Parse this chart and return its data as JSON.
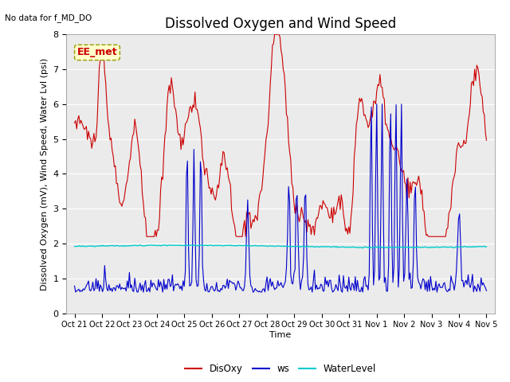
{
  "title": "Dissolved Oxygen and Wind Speed",
  "ylabel": "Dissolved Oxygen (mV), Wind Speed, Water Lvl (psi)",
  "xlabel": "Time",
  "no_data_text": "No data for f_MD_DO",
  "annotation_text": "EE_met",
  "ylim": [
    0.0,
    8.0
  ],
  "yticks": [
    0.0,
    1.0,
    2.0,
    3.0,
    4.0,
    5.0,
    6.0,
    7.0,
    8.0
  ],
  "background_color": "#ebebeb",
  "disoxy_color": "#cc0000",
  "ws_color": "#0000cc",
  "waterlevel_color": "#00cccc",
  "legend_labels": [
    "DisOxy",
    "ws",
    "WaterLevel"
  ],
  "title_fontsize": 12,
  "label_fontsize": 8,
  "tick_fontsize": 8,
  "xtick_labels": [
    "Oct 21",
    "Oct 22",
    "Oct 23",
    "Oct 24",
    "Oct 25",
    "Oct 26",
    "Oct 27",
    "Oct 28",
    "Oct 29",
    "Oct 30",
    "Oct 31",
    "Nov 1",
    "Nov 2",
    "Nov 3",
    "Nov 4",
    "Nov 5"
  ]
}
